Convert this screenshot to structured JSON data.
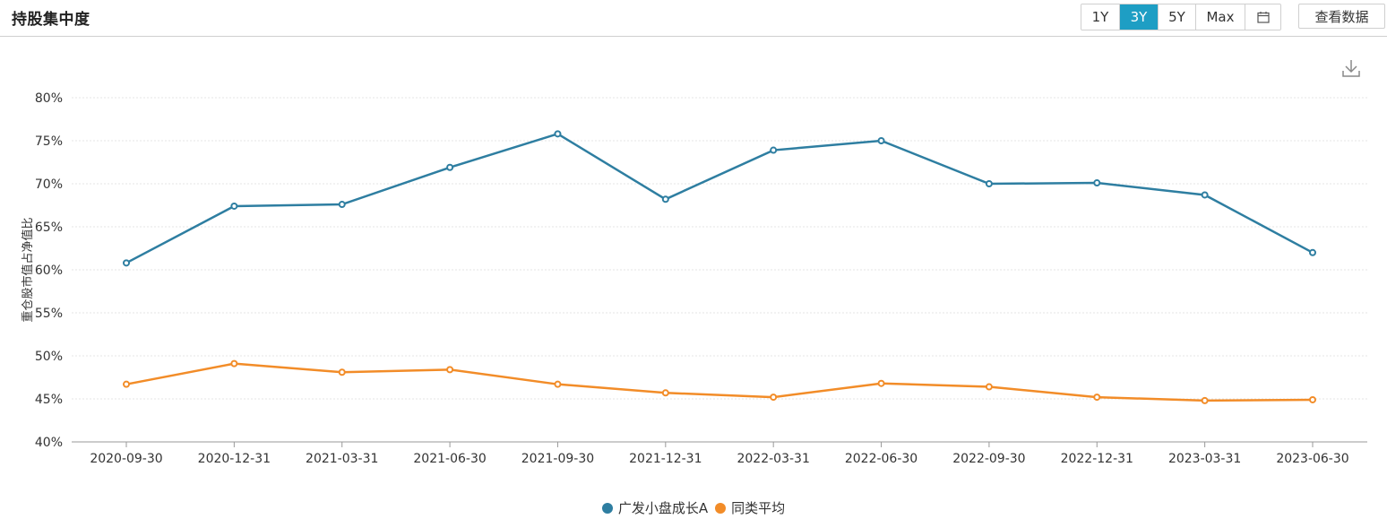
{
  "header": {
    "title": "持股集中度",
    "ranges": [
      "1Y",
      "3Y",
      "5Y",
      "Max"
    ],
    "active_range": "3Y",
    "calendar_icon": "calendar-icon",
    "view_data_label": "查看数据",
    "download_icon": "download-icon"
  },
  "colors": {
    "series_fund": "#2e7ea1",
    "series_avg": "#f28c28",
    "accent": "#1e9ec4",
    "grid": "#e6e6e6",
    "axis": "#999999"
  },
  "chart_data": {
    "type": "line",
    "title": "",
    "ylabel": "重仓股市值占净值比",
    "xlabel": "",
    "ylim": [
      40,
      80
    ],
    "yticks": [
      40,
      45,
      50,
      55,
      60,
      65,
      70,
      75,
      80
    ],
    "ytick_labels": [
      "40%",
      "45%",
      "50%",
      "55%",
      "60%",
      "65%",
      "70%",
      "75%",
      "80%"
    ],
    "grid": true,
    "legend_position": "bottom-center",
    "categories": [
      "2020-09-30",
      "2020-12-31",
      "2021-03-31",
      "2021-06-30",
      "2021-09-30",
      "2021-12-31",
      "2022-03-31",
      "2022-06-30",
      "2022-09-30",
      "2022-12-31",
      "2023-03-31",
      "2023-06-30"
    ],
    "series": [
      {
        "name": "广发小盘成长A",
        "values": [
          60.8,
          67.4,
          67.6,
          71.9,
          75.8,
          68.2,
          73.9,
          75.0,
          70.0,
          70.1,
          68.7,
          62.0
        ]
      },
      {
        "name": "同类平均",
        "values": [
          46.7,
          49.1,
          48.1,
          48.4,
          46.7,
          45.7,
          45.2,
          46.8,
          46.4,
          45.2,
          44.8,
          44.9
        ]
      }
    ]
  }
}
